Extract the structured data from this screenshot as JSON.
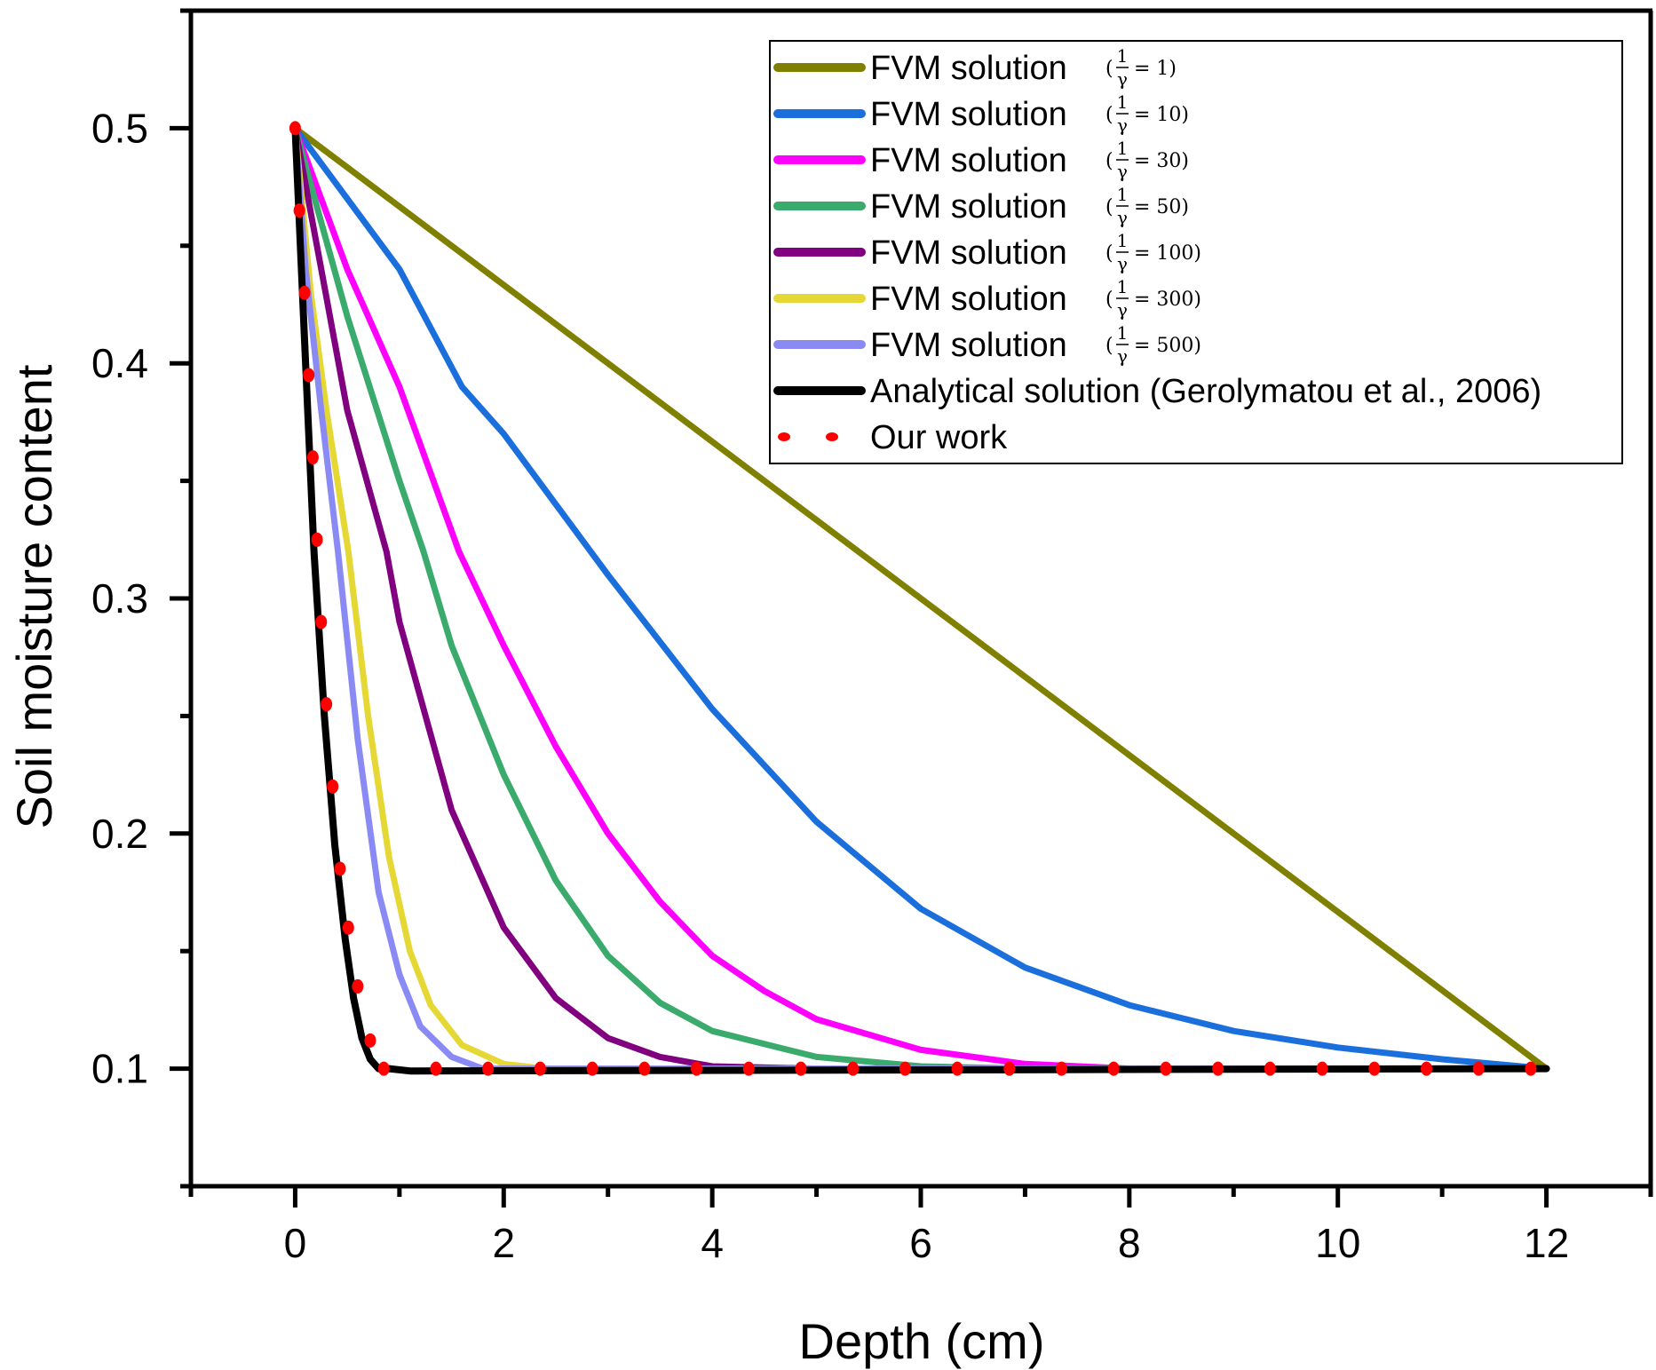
{
  "chart_data": {
    "type": "line",
    "title": "",
    "xlabel": "Depth (cm)",
    "ylabel": "Soil moisture content",
    "xlim": [
      -1,
      13
    ],
    "ylim": [
      0.05,
      0.55
    ],
    "xticks": [
      0,
      2,
      4,
      6,
      8,
      10,
      12
    ],
    "xtick_labels": [
      "0",
      "2",
      "4",
      "6",
      "8",
      "10",
      "12"
    ],
    "x_minor_ticks": [
      -1,
      1,
      3,
      5,
      7,
      9,
      11,
      13
    ],
    "yticks": [
      0.1,
      0.2,
      0.3,
      0.4,
      0.5
    ],
    "ytick_labels": [
      "0.1",
      "0.2",
      "0.3",
      "0.4",
      "0.5"
    ],
    "y_minor_ticks": [
      0.05,
      0.15,
      0.25,
      0.35,
      0.45,
      0.55
    ],
    "grid": false,
    "legend_position": "top-right",
    "series": [
      {
        "name": "FVM solution",
        "param": "= 1)",
        "color": "#808000",
        "style": "solid",
        "x": [
          0,
          12
        ],
        "y": [
          0.5,
          0.1
        ]
      },
      {
        "name": "FVM solution",
        "param": "= 10)",
        "color": "#1a6fdc",
        "style": "solid",
        "x": [
          0,
          0.5,
          1,
          1.6,
          2,
          3,
          4,
          5,
          6,
          7,
          8,
          9,
          10,
          11,
          12
        ],
        "y": [
          0.5,
          0.47,
          0.44,
          0.39,
          0.37,
          0.31,
          0.253,
          0.205,
          0.168,
          0.143,
          0.127,
          0.116,
          0.109,
          0.104,
          0.1
        ]
      },
      {
        "name": "FVM solution",
        "param": "= 30)",
        "color": "#ff00ff",
        "style": "solid",
        "x": [
          0,
          0.5,
          1,
          1.57,
          2,
          2.5,
          3,
          3.5,
          4,
          4.5,
          5,
          6,
          7,
          8,
          9,
          12
        ],
        "y": [
          0.5,
          0.44,
          0.39,
          0.32,
          0.28,
          0.237,
          0.2,
          0.171,
          0.148,
          0.133,
          0.121,
          0.108,
          0.102,
          0.1,
          0.1,
          0.1
        ]
      },
      {
        "name": "FVM solution",
        "param": "= 50)",
        "color": "#3aab6c",
        "style": "solid",
        "x": [
          0,
          0.5,
          1,
          1.23,
          1.5,
          2,
          2.5,
          3,
          3.5,
          4,
          5,
          6,
          7,
          12
        ],
        "y": [
          0.5,
          0.42,
          0.35,
          0.32,
          0.28,
          0.225,
          0.18,
          0.148,
          0.128,
          0.116,
          0.105,
          0.101,
          0.1,
          0.1
        ]
      },
      {
        "name": "FVM solution",
        "param": "= 100)",
        "color": "#800080",
        "style": "solid",
        "x": [
          0,
          0.25,
          0.5,
          0.875,
          1,
          1.5,
          2,
          2.5,
          3,
          3.5,
          4,
          5,
          12
        ],
        "y": [
          0.5,
          0.44,
          0.38,
          0.32,
          0.29,
          0.21,
          0.16,
          0.13,
          0.113,
          0.105,
          0.101,
          0.1,
          0.1
        ]
      },
      {
        "name": "FVM solution",
        "param": "= 300)",
        "color": "#e5d835",
        "style": "solid",
        "x": [
          0,
          0.15,
          0.3,
          0.51,
          0.7,
          0.9,
          1.1,
          1.3,
          1.6,
          2,
          2.4,
          12
        ],
        "y": [
          0.5,
          0.43,
          0.38,
          0.32,
          0.25,
          0.19,
          0.15,
          0.127,
          0.11,
          0.102,
          0.1,
          0.1
        ]
      },
      {
        "name": "FVM solution",
        "param": "= 500)",
        "color": "#8a8af5",
        "style": "solid",
        "x": [
          0,
          0.1,
          0.25,
          0.41,
          0.6,
          0.8,
          1.0,
          1.2,
          1.5,
          1.8,
          2.2,
          12
        ],
        "y": [
          0.5,
          0.44,
          0.38,
          0.32,
          0.24,
          0.175,
          0.14,
          0.118,
          0.105,
          0.1,
          0.1,
          0.1
        ]
      },
      {
        "name": "Analytical solution (Gerolymatou et al., 2006)",
        "param": "",
        "color": "#000000",
        "style": "solid",
        "x": [
          0,
          0.08,
          0.18,
          0.28,
          0.38,
          0.48,
          0.56,
          0.64,
          0.72,
          0.8,
          0.9,
          1.1,
          12
        ],
        "y": [
          0.5,
          0.42,
          0.32,
          0.25,
          0.195,
          0.155,
          0.13,
          0.113,
          0.104,
          0.1,
          0.1,
          0.099,
          0.1
        ]
      },
      {
        "name": "Our work",
        "param": "",
        "color": "#ff0000",
        "style": "dotted",
        "x": [
          0,
          0.04,
          0.09,
          0.13,
          0.17,
          0.21,
          0.25,
          0.3,
          0.36,
          0.43,
          0.51,
          0.6,
          0.72,
          0.85,
          1.35,
          1.85,
          2.35,
          2.85,
          3.35,
          3.85,
          4.35,
          4.85,
          5.35,
          5.85,
          6.35,
          6.85,
          7.35,
          7.85,
          8.35,
          8.85,
          9.35,
          9.85,
          10.35,
          10.85,
          11.35,
          11.85
        ],
        "y": [
          0.5,
          0.465,
          0.43,
          0.395,
          0.36,
          0.325,
          0.29,
          0.255,
          0.22,
          0.185,
          0.16,
          0.135,
          0.112,
          0.1,
          0.1,
          0.1,
          0.1,
          0.1,
          0.1,
          0.1,
          0.1,
          0.1,
          0.1,
          0.1,
          0.1,
          0.1,
          0.1,
          0.1,
          0.1,
          0.1,
          0.1,
          0.1,
          0.1,
          0.1,
          0.1,
          0.1
        ]
      }
    ]
  },
  "legend": {
    "entries": [
      {
        "label": "FVM solution",
        "frac_num": "1",
        "frac_den": "γ",
        "param": "= 1)"
      },
      {
        "label": "FVM solution",
        "frac_num": "1",
        "frac_den": "γ",
        "param": "= 10)"
      },
      {
        "label": "FVM solution",
        "frac_num": "1",
        "frac_den": "γ",
        "param": "= 30)"
      },
      {
        "label": "FVM solution",
        "frac_num": "1",
        "frac_den": "γ",
        "param": "= 50)"
      },
      {
        "label": "FVM solution",
        "frac_num": "1",
        "frac_den": "γ",
        "param": "= 100)"
      },
      {
        "label": "FVM solution",
        "frac_num": "1",
        "frac_den": "γ",
        "param": "= 300)"
      },
      {
        "label": "FVM solution",
        "frac_num": "1",
        "frac_den": "γ",
        "param": "= 500)"
      },
      {
        "label": "Analytical solution (Gerolymatou et al., 2006)"
      },
      {
        "label": "Our work"
      }
    ]
  }
}
